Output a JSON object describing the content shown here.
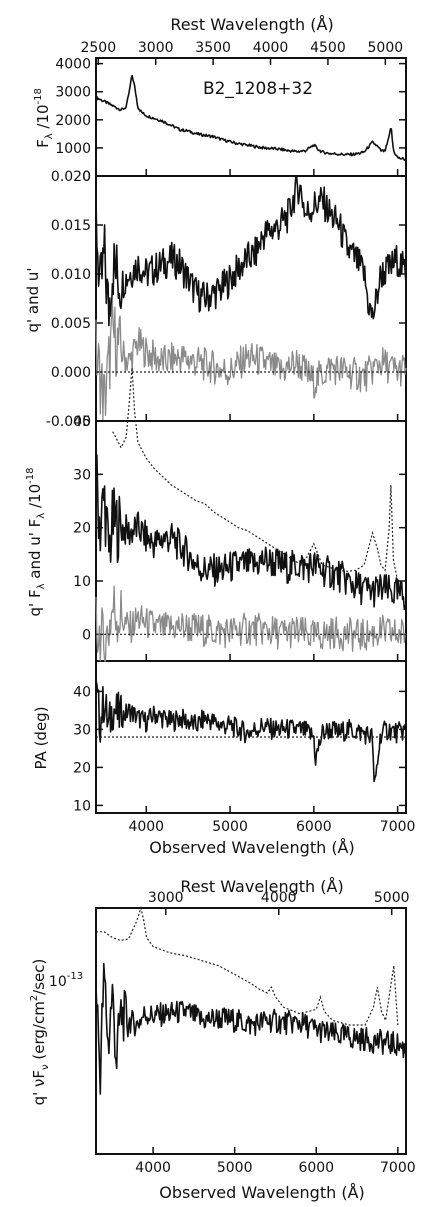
{
  "figure": {
    "object_name": "B2_1208+32",
    "top_axis_label": "Rest Wavelength (Å)",
    "bottom_axis_label": "Observed Wavelength (Å)",
    "superscript_exponent": "-18",
    "sed_tick_label": "10",
    "sed_tick_exponent": "-13"
  },
  "chart_data": [
    {
      "id": "flux",
      "type": "line",
      "ylabel": "F_λ /10^-18",
      "xlim": [
        3400,
        7100
      ],
      "ylim": [
        0,
        4200
      ],
      "yticks": [
        "0",
        "1000",
        "2000",
        "3000",
        "4000"
      ],
      "top_ticks": [
        "2500",
        "3000",
        "3500",
        "4000",
        "4500",
        "5000"
      ],
      "rest_ticks": [
        2500,
        3000,
        3500,
        4000,
        4500,
        5000
      ],
      "series": [
        {
          "style": "solid",
          "x": [
            3400,
            3500,
            3600,
            3700,
            3760,
            3800,
            3830,
            3860,
            3900,
            3950,
            4000,
            4100,
            4200,
            4300,
            4400,
            4500,
            4600,
            4700,
            4800,
            4900,
            5000,
            5100,
            5200,
            5300,
            5400,
            5500,
            5600,
            5700,
            5800,
            5900,
            6000,
            6050,
            6100,
            6200,
            6300,
            6400,
            6500,
            6600,
            6700,
            6760,
            6800,
            6850,
            6900,
            6920,
            6950,
            7000,
            7100
          ],
          "y": [
            2800,
            2650,
            2500,
            2350,
            2450,
            3050,
            3600,
            3200,
            2450,
            2250,
            2150,
            2050,
            1950,
            1800,
            1650,
            1600,
            1500,
            1450,
            1400,
            1300,
            1220,
            1150,
            1100,
            1050,
            1000,
            980,
            950,
            900,
            870,
            900,
            1100,
            950,
            850,
            800,
            780,
            760,
            780,
            850,
            1200,
            1050,
            900,
            880,
            1400,
            1800,
            900,
            650,
            580
          ]
        }
      ]
    },
    {
      "id": "qu",
      "type": "line",
      "ylabel": "q' and u'",
      "xlim": [
        3400,
        7100
      ],
      "ylim": [
        -0.005,
        0.02
      ],
      "yticks": [
        "-0.005",
        "0.000",
        "0.005",
        "0.010",
        "0.015",
        "0.020"
      ],
      "series": [
        {
          "name": "q'",
          "style": "solid",
          "x": [
            3400,
            3450,
            3500,
            3550,
            3600,
            3700,
            3800,
            3900,
            4000,
            4100,
            4200,
            4300,
            4400,
            4500,
            4600,
            4700,
            4800,
            4900,
            5000,
            5100,
            5200,
            5300,
            5400,
            5500,
            5600,
            5700,
            5800,
            5850,
            5900,
            6000,
            6100,
            6200,
            6300,
            6400,
            6500,
            6600,
            6650,
            6700,
            6750,
            6800,
            6900,
            7000,
            7100
          ],
          "y": [
            0.016,
            0.008,
            0.012,
            0.006,
            0.011,
            0.009,
            0.01,
            0.011,
            0.01,
            0.0105,
            0.011,
            0.0115,
            0.011,
            0.0095,
            0.008,
            0.0075,
            0.008,
            0.0085,
            0.0095,
            0.0105,
            0.0115,
            0.012,
            0.014,
            0.0145,
            0.015,
            0.016,
            0.019,
            0.0185,
            0.016,
            0.017,
            0.0175,
            0.016,
            0.015,
            0.0125,
            0.0115,
            0.01,
            0.007,
            0.0055,
            0.0075,
            0.01,
            0.0105,
            0.0115,
            0.01
          ]
        },
        {
          "name": "u'",
          "style": "grey",
          "x": [
            3400,
            3500,
            3600,
            3700,
            3800,
            3900,
            4000,
            4200,
            4400,
            4600,
            4800,
            5000,
            5200,
            5400,
            5600,
            5800,
            6000,
            6200,
            6400,
            6600,
            6800,
            7000,
            7100
          ],
          "y": [
            0.002,
            -0.003,
            0.004,
            0.002,
            0.001,
            0.003,
            0.002,
            0.001,
            0.0015,
            0.001,
            0.0005,
            0.0,
            0.0015,
            0.001,
            0.0,
            0.001,
            -0.001,
            0.0005,
            0.0,
            -0.0005,
            0.001,
            0.0,
            0.0005
          ]
        },
        {
          "name": "zero",
          "style": "dotted",
          "x": [
            3400,
            7100
          ],
          "y": [
            0,
            0
          ]
        }
      ]
    },
    {
      "id": "polflux",
      "type": "line",
      "ylabel": "q' F_λ and u' F_λ /10^-18",
      "xlim": [
        3400,
        7100
      ],
      "ylim": [
        -5,
        40
      ],
      "yticks": [
        "0",
        "10",
        "20",
        "30",
        "40"
      ],
      "series": [
        {
          "name": "scaled total flux",
          "style": "dotted",
          "x": [
            3600,
            3700,
            3760,
            3800,
            3830,
            3860,
            3900,
            4000,
            4100,
            4200,
            4300,
            4400,
            4500,
            4600,
            4700,
            4800,
            4900,
            5000,
            5100,
            5200,
            5300,
            5400,
            5500,
            5600,
            5700,
            5800,
            5900,
            6000,
            6050,
            6100,
            6200,
            6300,
            6400,
            6500,
            6600,
            6700,
            6760,
            6800,
            6850,
            6900,
            6920,
            6950,
            7000
          ],
          "y": [
            38,
            35,
            37,
            44,
            50,
            42,
            36,
            33,
            31,
            29.5,
            28,
            27,
            26,
            25,
            24.5,
            23,
            22,
            21,
            20,
            19.5,
            18.5,
            17.5,
            16.5,
            15.5,
            14.5,
            13.5,
            14,
            17,
            15,
            13,
            12.5,
            12,
            11.8,
            12,
            13,
            19,
            16,
            13,
            12,
            20,
            28,
            14,
            10
          ]
        },
        {
          "name": "q' F_λ",
          "style": "solid",
          "x": [
            3400,
            3450,
            3500,
            3550,
            3600,
            3700,
            3800,
            3900,
            4000,
            4100,
            4200,
            4300,
            4400,
            4500,
            4600,
            4700,
            4800,
            4900,
            5000,
            5100,
            5200,
            5300,
            5400,
            5500,
            5600,
            5700,
            5800,
            5900,
            6000,
            6100,
            6200,
            6300,
            6400,
            6500,
            6600,
            6700,
            6800,
            6900,
            7000,
            7100
          ],
          "y": [
            30,
            20,
            26,
            15,
            21,
            20,
            19,
            20,
            18,
            17,
            18,
            18,
            16.5,
            15,
            13,
            12,
            12,
            12,
            12.5,
            13,
            13,
            13,
            14,
            13.5,
            13,
            12.5,
            13,
            12.5,
            13,
            12,
            11.5,
            11,
            10,
            9,
            8.5,
            8,
            8.5,
            8,
            7.5,
            7
          ]
        },
        {
          "name": "u' F_λ",
          "style": "grey",
          "x": [
            3400,
            3500,
            3600,
            3700,
            3800,
            3900,
            4000,
            4200,
            4400,
            4600,
            4800,
            5000,
            5200,
            5400,
            5600,
            5800,
            6000,
            6200,
            6400,
            6600,
            6800,
            7000,
            7100
          ],
          "y": [
            2,
            -3,
            5,
            3,
            1,
            3,
            2,
            1,
            1.5,
            1,
            0.5,
            0.5,
            1,
            0.8,
            0.2,
            0.5,
            -0.5,
            0.3,
            0,
            -0.3,
            0.5,
            0,
            0.3
          ]
        },
        {
          "name": "zero",
          "style": "dotted",
          "x": [
            3400,
            7100
          ],
          "y": [
            0,
            0
          ]
        }
      ]
    },
    {
      "id": "pa",
      "type": "line",
      "ylabel": "PA (deg)",
      "xlim": [
        3400,
        7100
      ],
      "ylim": [
        8,
        48
      ],
      "yticks": [
        "10",
        "20",
        "30",
        "40"
      ],
      "xticks": [
        "4000",
        "5000",
        "6000",
        "7000"
      ],
      "series": [
        {
          "style": "solid",
          "x": [
            3400,
            3450,
            3500,
            3550,
            3600,
            3650,
            3700,
            3800,
            3900,
            4000,
            4100,
            4200,
            4300,
            4400,
            4500,
            4600,
            4700,
            4800,
            4900,
            5000,
            5100,
            5200,
            5300,
            5400,
            5500,
            5600,
            5700,
            5800,
            5900,
            6000,
            6020,
            6100,
            6200,
            6300,
            6400,
            6500,
            6600,
            6700,
            6720,
            6800,
            6900,
            7000,
            7100
          ],
          "y": [
            40,
            32,
            38,
            30,
            36,
            34,
            33,
            35,
            33,
            32,
            34,
            33,
            32,
            33,
            32,
            31,
            33,
            32,
            31,
            31,
            30,
            29,
            30,
            31,
            30,
            30,
            30,
            30,
            29.5,
            28,
            22,
            29,
            30,
            29,
            30,
            29.5,
            29,
            28,
            14,
            29,
            30,
            29,
            30
          ]
        },
        {
          "name": "mean",
          "style": "dotted",
          "x": [
            3400,
            7100
          ],
          "y": [
            28,
            28
          ]
        }
      ]
    },
    {
      "id": "sed",
      "type": "line",
      "ylabel": "q' νF_ν (erg/cm^2/sec)",
      "xlim": [
        3300,
        7100
      ],
      "ylim": [
        0.4,
        1.5
      ],
      "yscale": "log",
      "xticks": [
        "4000",
        "5000",
        "6000",
        "7000"
      ],
      "top_ticks": [
        "3000",
        "4000",
        "5000"
      ],
      "rest_ticks": [
        3000,
        4000,
        5000
      ],
      "series": [
        {
          "name": "scaled total flux",
          "style": "dotted",
          "x": [
            3300,
            3400,
            3500,
            3600,
            3700,
            3800,
            3850,
            3880,
            3920,
            4000,
            4200,
            4400,
            4600,
            4800,
            5000,
            5200,
            5300,
            5400,
            5450,
            5500,
            5600,
            5800,
            6000,
            6050,
            6100,
            6200,
            6400,
            6600,
            6700,
            6750,
            6800,
            6850,
            6900,
            6950,
            7000
          ],
          "y": [
            1.32,
            1.32,
            1.28,
            1.26,
            1.27,
            1.4,
            1.5,
            1.42,
            1.28,
            1.22,
            1.18,
            1.16,
            1.13,
            1.1,
            1.05,
            1.0,
            0.97,
            0.95,
            0.98,
            0.93,
            0.88,
            0.85,
            0.87,
            0.93,
            0.86,
            0.82,
            0.8,
            0.8,
            0.88,
            0.98,
            0.86,
            0.82,
            0.95,
            1.1,
            0.8
          ]
        },
        {
          "name": "q' νF_ν",
          "style": "solid",
          "x": [
            3300,
            3350,
            3400,
            3450,
            3500,
            3550,
            3600,
            3700,
            3800,
            3900,
            4000,
            4200,
            4400,
            4600,
            4800,
            5000,
            5200,
            5400,
            5600,
            5800,
            6000,
            6200,
            6400,
            6600,
            6800,
            7000,
            7100
          ],
          "y": [
            1.0,
            0.6,
            1.05,
            0.7,
            0.95,
            0.65,
            0.85,
            0.82,
            0.8,
            0.85,
            0.84,
            0.85,
            0.86,
            0.82,
            0.83,
            0.82,
            0.8,
            0.82,
            0.81,
            0.81,
            0.78,
            0.76,
            0.75,
            0.74,
            0.73,
            0.72,
            0.7
          ]
        }
      ]
    }
  ]
}
